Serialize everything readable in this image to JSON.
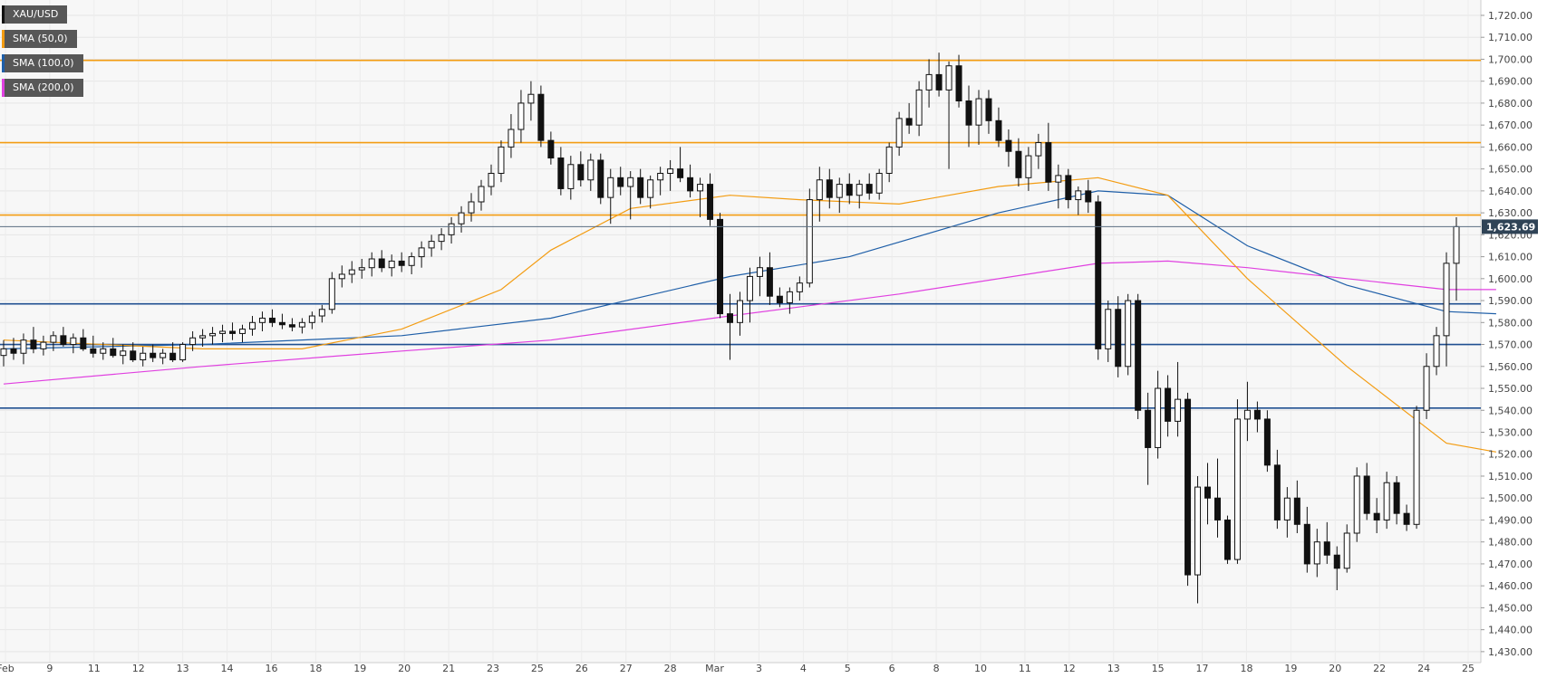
{
  "chart_data": {
    "type": "candlestick",
    "symbol": "XAU/USD",
    "legend": [
      {
        "label": "XAU/USD",
        "color": "#111111"
      },
      {
        "label": "SMA (50,0)",
        "color": "#f39c12"
      },
      {
        "label": "SMA (100,0)",
        "color": "#1f5fa8"
      },
      {
        "label": "SMA (200,0)",
        "color": "#e040e0"
      }
    ],
    "legend_placement": "top-left",
    "ylim": [
      1425,
      1727
    ],
    "y_ticks": [
      "1,430.00",
      "1,440.00",
      "1,450.00",
      "1,460.00",
      "1,470.00",
      "1,480.00",
      "1,490.00",
      "1,500.00",
      "1,510.00",
      "1,520.00",
      "1,530.00",
      "1,540.00",
      "1,550.00",
      "1,560.00",
      "1,570.00",
      "1,580.00",
      "1,590.00",
      "1,600.00",
      "1,610.00",
      "1,620.00",
      "1,630.00",
      "1,640.00",
      "1,650.00",
      "1,660.00",
      "1,670.00",
      "1,680.00",
      "1,690.00",
      "1,700.00",
      "1,710.00",
      "1,720.00"
    ],
    "x_ticks": [
      "Feb",
      "9",
      "11",
      "12",
      "13",
      "14",
      "16",
      "18",
      "19",
      "20",
      "21",
      "23",
      "25",
      "26",
      "27",
      "28",
      "Mar",
      "3",
      "4",
      "5",
      "6",
      "8",
      "10",
      "11",
      "12",
      "13",
      "15",
      "17",
      "18",
      "19",
      "20",
      "22",
      "24",
      "25"
    ],
    "grid": true,
    "last_price": 1623.69,
    "last_price_label": "1,623.69",
    "resistance_levels": [
      1699.5,
      1662,
      1629
    ],
    "support_levels": [
      1588.5,
      1570,
      1541
    ],
    "ohlc": [
      [
        1565,
        1572,
        1560,
        1568
      ],
      [
        1568,
        1573,
        1563,
        1566
      ],
      [
        1566,
        1575,
        1561,
        1572
      ],
      [
        1572,
        1578,
        1566,
        1568
      ],
      [
        1568,
        1574,
        1565,
        1571
      ],
      [
        1571,
        1576,
        1567,
        1574
      ],
      [
        1574,
        1578,
        1569,
        1570
      ],
      [
        1570,
        1575,
        1566,
        1573
      ],
      [
        1573,
        1577,
        1567,
        1568
      ],
      [
        1568,
        1574,
        1564,
        1566
      ],
      [
        1566,
        1571,
        1563,
        1568
      ],
      [
        1568,
        1573,
        1564,
        1565
      ],
      [
        1565,
        1570,
        1561,
        1567
      ],
      [
        1567,
        1571,
        1562,
        1563
      ],
      [
        1563,
        1569,
        1560,
        1566
      ],
      [
        1566,
        1570,
        1562,
        1564
      ],
      [
        1564,
        1568,
        1561,
        1566
      ],
      [
        1566,
        1571,
        1562,
        1563
      ],
      [
        1563,
        1571,
        1562,
        1570
      ],
      [
        1570,
        1576,
        1567,
        1573
      ],
      [
        1573,
        1577,
        1569,
        1574
      ],
      [
        1574,
        1578,
        1570,
        1575
      ],
      [
        1575,
        1579,
        1571,
        1576
      ],
      [
        1576,
        1580,
        1572,
        1575
      ],
      [
        1575,
        1579,
        1571,
        1577
      ],
      [
        1577,
        1583,
        1574,
        1580
      ],
      [
        1580,
        1585,
        1576,
        1582
      ],
      [
        1582,
        1586,
        1578,
        1580
      ],
      [
        1580,
        1584,
        1577,
        1579
      ],
      [
        1579,
        1582,
        1576,
        1578
      ],
      [
        1578,
        1582,
        1575,
        1580
      ],
      [
        1580,
        1585,
        1577,
        1583
      ],
      [
        1583,
        1588,
        1580,
        1586
      ],
      [
        1586,
        1603,
        1584,
        1600
      ],
      [
        1600,
        1606,
        1596,
        1602
      ],
      [
        1602,
        1608,
        1598,
        1604
      ],
      [
        1604,
        1609,
        1600,
        1605
      ],
      [
        1605,
        1612,
        1601,
        1609
      ],
      [
        1609,
        1613,
        1603,
        1605
      ],
      [
        1605,
        1611,
        1601,
        1608
      ],
      [
        1608,
        1612,
        1603,
        1606
      ],
      [
        1606,
        1612,
        1602,
        1610
      ],
      [
        1610,
        1617,
        1605,
        1614
      ],
      [
        1614,
        1620,
        1610,
        1617
      ],
      [
        1617,
        1623,
        1613,
        1620
      ],
      [
        1620,
        1628,
        1616,
        1625
      ],
      [
        1625,
        1633,
        1621,
        1630
      ],
      [
        1630,
        1639,
        1626,
        1635
      ],
      [
        1635,
        1645,
        1631,
        1642
      ],
      [
        1642,
        1652,
        1638,
        1648
      ],
      [
        1648,
        1663,
        1644,
        1660
      ],
      [
        1660,
        1675,
        1655,
        1668
      ],
      [
        1668,
        1686,
        1662,
        1680
      ],
      [
        1680,
        1690,
        1672,
        1684
      ],
      [
        1684,
        1688,
        1660,
        1663
      ],
      [
        1663,
        1667,
        1652,
        1655
      ],
      [
        1655,
        1660,
        1638,
        1641
      ],
      [
        1641,
        1656,
        1636,
        1652
      ],
      [
        1652,
        1658,
        1642,
        1645
      ],
      [
        1645,
        1657,
        1640,
        1654
      ],
      [
        1654,
        1657,
        1634,
        1637
      ],
      [
        1637,
        1650,
        1625,
        1646
      ],
      [
        1646,
        1651,
        1638,
        1642
      ],
      [
        1642,
        1649,
        1627,
        1646
      ],
      [
        1646,
        1650,
        1634,
        1637
      ],
      [
        1637,
        1647,
        1632,
        1645
      ],
      [
        1645,
        1651,
        1638,
        1648
      ],
      [
        1648,
        1654,
        1640,
        1650
      ],
      [
        1650,
        1660,
        1644,
        1646
      ],
      [
        1646,
        1652,
        1637,
        1640
      ],
      [
        1640,
        1646,
        1628,
        1643
      ],
      [
        1643,
        1648,
        1624,
        1627
      ],
      [
        1627,
        1630,
        1582,
        1584
      ],
      [
        1584,
        1593,
        1563,
        1580
      ],
      [
        1580,
        1594,
        1574,
        1590
      ],
      [
        1590,
        1605,
        1580,
        1601
      ],
      [
        1601,
        1610,
        1592,
        1605
      ],
      [
        1605,
        1612,
        1588,
        1592
      ],
      [
        1592,
        1596,
        1587,
        1589
      ],
      [
        1589,
        1596,
        1584,
        1594
      ],
      [
        1594,
        1601,
        1590,
        1598
      ],
      [
        1598,
        1641,
        1596,
        1636
      ],
      [
        1636,
        1651,
        1626,
        1645
      ],
      [
        1645,
        1650,
        1632,
        1637
      ],
      [
        1637,
        1646,
        1630,
        1643
      ],
      [
        1643,
        1648,
        1634,
        1638
      ],
      [
        1638,
        1645,
        1632,
        1643
      ],
      [
        1643,
        1648,
        1636,
        1639
      ],
      [
        1639,
        1650,
        1636,
        1648
      ],
      [
        1648,
        1662,
        1644,
        1660
      ],
      [
        1660,
        1676,
        1656,
        1673
      ],
      [
        1673,
        1680,
        1666,
        1670
      ],
      [
        1670,
        1690,
        1665,
        1686
      ],
      [
        1686,
        1700,
        1678,
        1693
      ],
      [
        1693,
        1703,
        1683,
        1686
      ],
      [
        1686,
        1699,
        1650,
        1697
      ],
      [
        1697,
        1702,
        1678,
        1681
      ],
      [
        1681,
        1688,
        1660,
        1670
      ],
      [
        1670,
        1686,
        1661,
        1682
      ],
      [
        1682,
        1686,
        1666,
        1672
      ],
      [
        1672,
        1678,
        1660,
        1663
      ],
      [
        1663,
        1668,
        1651,
        1658
      ],
      [
        1658,
        1664,
        1642,
        1646
      ],
      [
        1646,
        1660,
        1640,
        1656
      ],
      [
        1656,
        1666,
        1650,
        1662
      ],
      [
        1662,
        1671,
        1640,
        1644
      ],
      [
        1644,
        1652,
        1632,
        1647
      ],
      [
        1647,
        1650,
        1632,
        1636
      ],
      [
        1636,
        1642,
        1629,
        1640
      ],
      [
        1640,
        1645,
        1630,
        1635
      ],
      [
        1635,
        1638,
        1563,
        1568
      ],
      [
        1568,
        1590,
        1562,
        1586
      ],
      [
        1586,
        1592,
        1555,
        1560
      ],
      [
        1560,
        1593,
        1556,
        1590
      ],
      [
        1590,
        1593,
        1536,
        1540
      ],
      [
        1540,
        1548,
        1506,
        1523
      ],
      [
        1523,
        1558,
        1518,
        1550
      ],
      [
        1550,
        1556,
        1528,
        1535
      ],
      [
        1535,
        1562,
        1528,
        1545
      ],
      [
        1545,
        1548,
        1460,
        1465
      ],
      [
        1465,
        1510,
        1452,
        1505
      ],
      [
        1505,
        1516,
        1488,
        1500
      ],
      [
        1500,
        1518,
        1482,
        1490
      ],
      [
        1490,
        1492,
        1470,
        1472
      ],
      [
        1472,
        1545,
        1470,
        1536
      ],
      [
        1536,
        1553,
        1526,
        1540
      ],
      [
        1540,
        1544,
        1530,
        1536
      ],
      [
        1536,
        1540,
        1512,
        1515
      ],
      [
        1515,
        1522,
        1486,
        1490
      ],
      [
        1490,
        1505,
        1482,
        1500
      ],
      [
        1500,
        1508,
        1484,
        1488
      ],
      [
        1488,
        1496,
        1466,
        1470
      ],
      [
        1470,
        1486,
        1464,
        1480
      ],
      [
        1480,
        1489,
        1470,
        1474
      ],
      [
        1474,
        1478,
        1458,
        1468
      ],
      [
        1468,
        1488,
        1466,
        1484
      ],
      [
        1484,
        1514,
        1480,
        1510
      ],
      [
        1510,
        1516,
        1490,
        1493
      ],
      [
        1493,
        1500,
        1484,
        1490
      ],
      [
        1490,
        1512,
        1486,
        1507
      ],
      [
        1507,
        1510,
        1488,
        1493
      ],
      [
        1493,
        1497,
        1485,
        1488
      ],
      [
        1488,
        1542,
        1486,
        1540
      ],
      [
        1540,
        1566,
        1536,
        1560
      ],
      [
        1560,
        1578,
        1556,
        1574
      ],
      [
        1574,
        1612,
        1560,
        1607
      ],
      [
        1607,
        1628,
        1590,
        1623.7
      ]
    ],
    "sma50": [
      [
        0,
        1572
      ],
      [
        20,
        1568
      ],
      [
        30,
        1568
      ],
      [
        40,
        1577
      ],
      [
        50,
        1595
      ],
      [
        55,
        1613
      ],
      [
        63,
        1632
      ],
      [
        73,
        1638
      ],
      [
        80,
        1636
      ],
      [
        90,
        1634
      ],
      [
        100,
        1642
      ],
      [
        110,
        1646
      ],
      [
        117,
        1638
      ],
      [
        125,
        1600
      ],
      [
        135,
        1560
      ],
      [
        145,
        1525
      ],
      [
        150,
        1521
      ]
    ],
    "sma100": [
      [
        0,
        1568
      ],
      [
        20,
        1570
      ],
      [
        40,
        1574
      ],
      [
        55,
        1582
      ],
      [
        73,
        1601
      ],
      [
        85,
        1610
      ],
      [
        100,
        1630
      ],
      [
        110,
        1640
      ],
      [
        117,
        1638
      ],
      [
        125,
        1615
      ],
      [
        135,
        1597
      ],
      [
        145,
        1585
      ],
      [
        150,
        1584
      ]
    ],
    "sma200": [
      [
        0,
        1552
      ],
      [
        20,
        1560
      ],
      [
        40,
        1567
      ],
      [
        55,
        1572
      ],
      [
        73,
        1583
      ],
      [
        90,
        1593
      ],
      [
        110,
        1607
      ],
      [
        117,
        1608
      ],
      [
        125,
        1605
      ],
      [
        135,
        1600
      ],
      [
        145,
        1595
      ],
      [
        150,
        1595
      ]
    ]
  }
}
